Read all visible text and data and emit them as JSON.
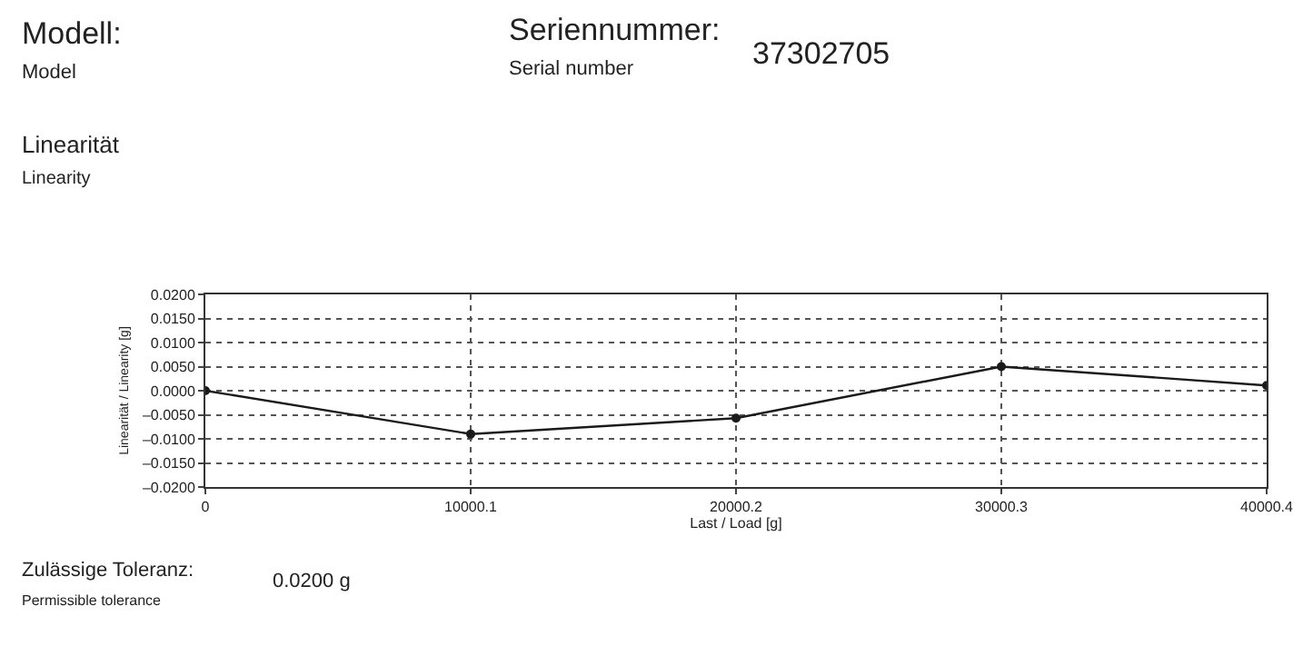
{
  "chart_data": {
    "type": "line",
    "title": "Linearität",
    "subtitle": "Linearity",
    "xlabel": "Last / Load [g]",
    "ylabel": "Linearität / Linearity [g]",
    "annotations": [
      "Modell:",
      "Model",
      "Seriennummer:",
      "Serial number",
      "37302705",
      "Zulässige Toleranz:",
      "Permissible tolerance",
      "0.0200 g"
    ],
    "x": [
      0,
      10000.1,
      20000.2,
      30000.3,
      40000.4
    ],
    "series": [
      {
        "color": "#1a1a1a",
        "values": [
          0,
          -0.009,
          -0.0057,
          0.005,
          0.0011
        ]
      }
    ],
    "xlim": [
      0,
      40000.4
    ],
    "xticks": [
      0,
      10000.1,
      20000.2,
      30000.3,
      40000.4
    ],
    "ylim": [
      -0.02,
      0.02
    ],
    "yticks": [
      {
        "value": -0.02,
        "label": "–0.0200"
      },
      {
        "value": -0.015,
        "label": "–0.0150"
      },
      {
        "value": -0.01,
        "label": "–0.0100"
      },
      {
        "value": -0.005,
        "label": "–0.0050"
      },
      {
        "value": 0,
        "label": "0.0000"
      },
      {
        "value": 0.005,
        "label": "0.0050"
      },
      {
        "value": 0.01,
        "label": "0.0100"
      },
      {
        "value": 0.015,
        "label": "0.0150"
      },
      {
        "value": 0.02,
        "label": "0.0200"
      }
    ],
    "grid": true,
    "marker": "circle",
    "line_style": "solid"
  }
}
